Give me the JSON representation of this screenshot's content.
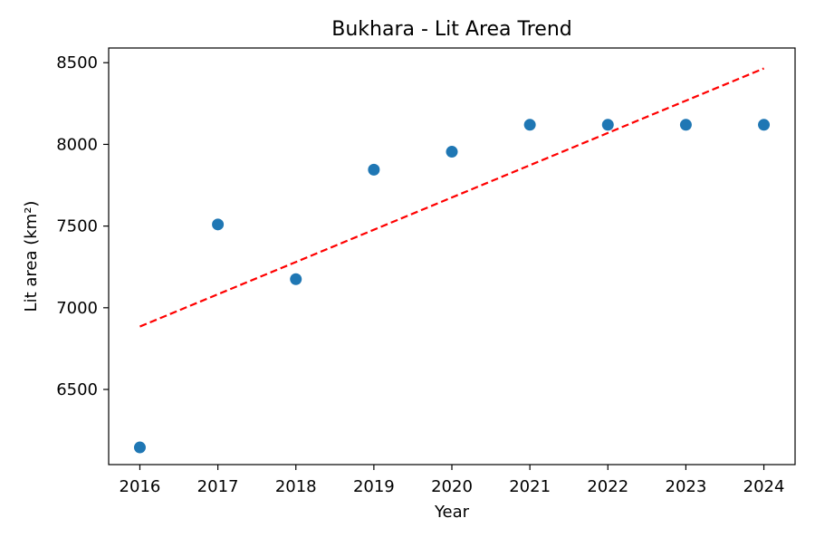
{
  "chart_data": {
    "type": "scatter",
    "title": "Bukhara - Lit Area Trend",
    "xlabel": "Year",
    "ylabel": "Lit area (km²)",
    "xlim": [
      2015.6,
      2024.4
    ],
    "ylim": [
      6040,
      8590
    ],
    "xticks": [
      2016,
      2017,
      2018,
      2019,
      2020,
      2021,
      2022,
      2023,
      2024
    ],
    "yticks": [
      6500,
      7000,
      7500,
      8000,
      8500
    ],
    "grid": false,
    "series": [
      {
        "kind": "scatter",
        "color": "#1f77b4",
        "points": [
          {
            "x": 2016,
            "y": 6145
          },
          {
            "x": 2017,
            "y": 7510
          },
          {
            "x": 2018,
            "y": 7175
          },
          {
            "x": 2019,
            "y": 7845
          },
          {
            "x": 2020,
            "y": 7955
          },
          {
            "x": 2021,
            "y": 8120
          },
          {
            "x": 2022,
            "y": 8120
          },
          {
            "x": 2023,
            "y": 8120
          },
          {
            "x": 2024,
            "y": 8120
          }
        ]
      },
      {
        "kind": "trend-line",
        "style": "dashed",
        "color": "#ff0000",
        "points": [
          {
            "x": 2016,
            "y": 6885
          },
          {
            "x": 2024,
            "y": 8465
          }
        ]
      }
    ]
  }
}
